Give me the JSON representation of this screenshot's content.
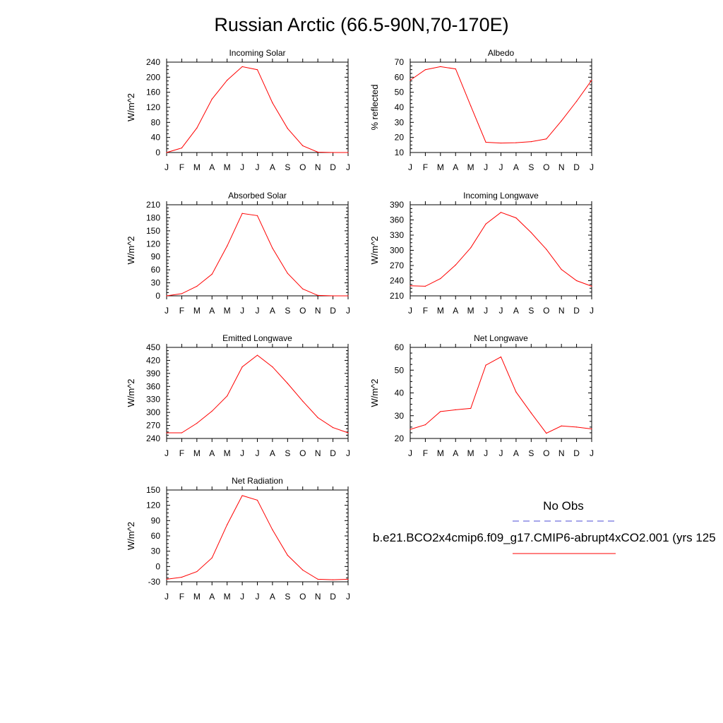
{
  "title": "Russian Arctic (66.5-90N,70-170E)",
  "months": [
    "J",
    "F",
    "M",
    "A",
    "M",
    "J",
    "J",
    "A",
    "S",
    "O",
    "N",
    "D",
    "J"
  ],
  "colors": {
    "model_line": "#ff0000",
    "obs_line": "#4b4bd6",
    "axis": "#000000"
  },
  "legend": {
    "obs_label": "No Obs",
    "model_label": "b.e21.BCO2x4cmip6.f09_g17.CMIP6-abrupt4xCO2.001 (yrs 125"
  },
  "chart_data": [
    {
      "type": "line",
      "title": "Incoming Solar",
      "ylabel": "W/m^2",
      "categories": [
        "J",
        "F",
        "M",
        "A",
        "M",
        "J",
        "J",
        "A",
        "S",
        "O",
        "N",
        "D",
        "J"
      ],
      "ylim": [
        0,
        240
      ],
      "yticks": [
        0,
        40,
        80,
        120,
        160,
        200,
        240
      ],
      "yticklabels": [
        "0",
        "40",
        "80",
        "120",
        "160",
        "200",
        "240"
      ],
      "values": [
        0,
        12,
        65,
        142,
        192,
        228,
        220,
        132,
        64,
        18,
        1,
        0,
        0
      ]
    },
    {
      "type": "line",
      "title": "Albedo",
      "ylabel": "% reflected",
      "categories": [
        "J",
        "F",
        "M",
        "A",
        "M",
        "J",
        "J",
        "A",
        "S",
        "O",
        "N",
        "D",
        "J"
      ],
      "ylim": [
        10,
        70
      ],
      "yticks": [
        10,
        20,
        30,
        40,
        50,
        60,
        70
      ],
      "yticklabels": [
        "10",
        "20",
        "30",
        "40",
        "50",
        "60",
        "70"
      ],
      "values": [
        58,
        65,
        67,
        65.5,
        41,
        16.8,
        16.3,
        16.5,
        17.2,
        19,
        31,
        44,
        58
      ]
    },
    {
      "type": "line",
      "title": "Absorbed Solar",
      "ylabel": "W/m^2",
      "categories": [
        "J",
        "F",
        "M",
        "A",
        "M",
        "J",
        "J",
        "A",
        "S",
        "O",
        "N",
        "D",
        "J"
      ],
      "ylim": [
        0,
        210
      ],
      "yticks": [
        0,
        30,
        60,
        90,
        120,
        150,
        180,
        210
      ],
      "yticklabels": [
        "0",
        "30",
        "60",
        "90",
        "120",
        "150",
        "180",
        "210"
      ],
      "values": [
        0,
        5,
        22,
        50,
        115,
        190,
        185,
        110,
        52,
        16,
        1,
        0,
        0
      ]
    },
    {
      "type": "line",
      "title": "Incoming Longwave",
      "ylabel": "W/m^2",
      "categories": [
        "J",
        "F",
        "M",
        "A",
        "M",
        "J",
        "J",
        "A",
        "S",
        "O",
        "N",
        "D",
        "J"
      ],
      "ylim": [
        210,
        390
      ],
      "yticks": [
        210,
        240,
        270,
        300,
        330,
        360,
        390
      ],
      "yticklabels": [
        "210",
        "240",
        "270",
        "300",
        "330",
        "360",
        "390"
      ],
      "values": [
        230,
        229,
        244,
        271,
        305,
        352,
        375,
        364,
        335,
        302,
        262,
        240,
        229
      ]
    },
    {
      "type": "line",
      "title": "Emitted Longwave",
      "ylabel": "W/m^2",
      "categories": [
        "J",
        "F",
        "M",
        "A",
        "M",
        "J",
        "J",
        "A",
        "S",
        "O",
        "N",
        "D",
        "J"
      ],
      "ylim": [
        240,
        450
      ],
      "yticks": [
        240,
        270,
        300,
        330,
        360,
        390,
        420,
        450
      ],
      "yticklabels": [
        "240",
        "270",
        "300",
        "330",
        "360",
        "390",
        "420",
        "450"
      ],
      "values": [
        253,
        253,
        275,
        303,
        338,
        405,
        432,
        405,
        367,
        326,
        288,
        265,
        253
      ]
    },
    {
      "type": "line",
      "title": "Net Longwave",
      "ylabel": "W/m^2",
      "categories": [
        "J",
        "F",
        "M",
        "A",
        "M",
        "J",
        "J",
        "A",
        "S",
        "O",
        "N",
        "D",
        "J"
      ],
      "ylim": [
        20,
        60
      ],
      "yticks": [
        20,
        30,
        40,
        50,
        60
      ],
      "yticklabels": [
        "20",
        "30",
        "40",
        "50",
        "60"
      ],
      "values": [
        24,
        26,
        31.8,
        32.6,
        33.2,
        52.2,
        55.8,
        40.4,
        31.2,
        22.3,
        25.5,
        25.0,
        24.2
      ]
    },
    {
      "type": "line",
      "title": "Net Radiation",
      "ylabel": "W/m^2",
      "categories": [
        "J",
        "F",
        "M",
        "A",
        "M",
        "J",
        "J",
        "A",
        "S",
        "O",
        "N",
        "D",
        "J"
      ],
      "ylim": [
        -30,
        150
      ],
      "yticks": [
        -30,
        0,
        30,
        60,
        90,
        120,
        150
      ],
      "yticklabels": [
        "-30",
        "0",
        "30",
        "60",
        "90",
        "120",
        "150"
      ],
      "values": [
        -25,
        -21,
        -10,
        17,
        82,
        139,
        130,
        72,
        22,
        -7,
        -25,
        -26,
        -25
      ]
    }
  ]
}
